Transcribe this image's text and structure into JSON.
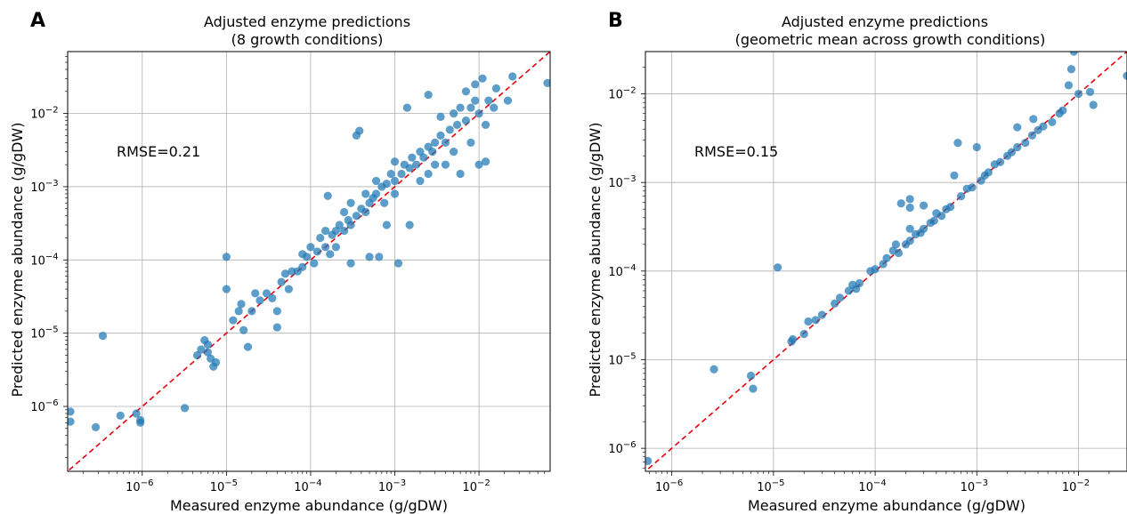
{
  "chart_data": [
    {
      "type": "scatter",
      "panel_letter": "A",
      "title_lines": [
        "Adjusted enzyme predictions",
        "(8 growth conditions)"
      ],
      "xlabel": "Measured enzyme abundance (g/gDW)",
      "ylabel": "Predicted enzyme abundance (g/gDW)",
      "scale": "log",
      "xlim": [
        1.3e-07,
        0.07
      ],
      "ylim": [
        1.3e-07,
        0.07
      ],
      "x_ticks": [
        {
          "value": 1e-06,
          "base": "10",
          "exp": "−6"
        },
        {
          "value": 1e-05,
          "base": "10",
          "exp": "−5"
        },
        {
          "value": 0.0001,
          "base": "10",
          "exp": "−4"
        },
        {
          "value": 0.001,
          "base": "10",
          "exp": "−3"
        },
        {
          "value": 0.01,
          "base": "10",
          "exp": "−2"
        }
      ],
      "y_ticks": [
        {
          "value": 1e-06,
          "base": "10",
          "exp": "−6"
        },
        {
          "value": 1e-05,
          "base": "10",
          "exp": "−5"
        },
        {
          "value": 0.0001,
          "base": "10",
          "exp": "−4"
        },
        {
          "value": 0.001,
          "base": "10",
          "exp": "−3"
        },
        {
          "value": 0.01,
          "base": "10",
          "exp": "−2"
        }
      ],
      "grid": true,
      "annotation": "RMSE=0.21",
      "reference_line": "y = x",
      "series": [
        {
          "points": [
            [
              1.4e-07,
              8.5e-07
            ],
            [
              1.4e-07,
              6.2e-07
            ],
            [
              2.8e-07,
              5.2e-07
            ],
            [
              3.4e-07,
              9.2e-06
            ],
            [
              5.5e-07,
              7.5e-07
            ],
            [
              8.5e-07,
              8e-07
            ],
            [
              9.5e-07,
              6.5e-07
            ],
            [
              9.5e-07,
              6e-07
            ],
            [
              3.2e-06,
              9.5e-07
            ],
            [
              4.5e-06,
              5e-06
            ],
            [
              5e-06,
              6e-06
            ],
            [
              5.5e-06,
              8e-06
            ],
            [
              6e-06,
              7e-06
            ],
            [
              6e-06,
              5.5e-06
            ],
            [
              6.5e-06,
              4.5e-06
            ],
            [
              7e-06,
              3.5e-06
            ],
            [
              7.5e-06,
              4e-06
            ],
            [
              1e-05,
              4e-05
            ],
            [
              1e-05,
              0.00011
            ],
            [
              1.2e-05,
              1.5e-05
            ],
            [
              1.4e-05,
              2e-05
            ],
            [
              1.5e-05,
              2.5e-05
            ],
            [
              1.6e-05,
              1.1e-05
            ],
            [
              1.8e-05,
              6.5e-06
            ],
            [
              2e-05,
              2e-05
            ],
            [
              2.2e-05,
              3.5e-05
            ],
            [
              2.5e-05,
              2.8e-05
            ],
            [
              3e-05,
              3.5e-05
            ],
            [
              3.5e-05,
              3e-05
            ],
            [
              4e-05,
              2e-05
            ],
            [
              4e-05,
              1.2e-05
            ],
            [
              4.5e-05,
              5e-05
            ],
            [
              5e-05,
              6.5e-05
            ],
            [
              5.5e-05,
              4e-05
            ],
            [
              6e-05,
              7e-05
            ],
            [
              7e-05,
              7e-05
            ],
            [
              8e-05,
              0.00012
            ],
            [
              8e-05,
              8e-05
            ],
            [
              9e-05,
              0.00011
            ],
            [
              0.0001,
              0.00015
            ],
            [
              0.00011,
              9e-05
            ],
            [
              0.00012,
              0.00013
            ],
            [
              0.00013,
              0.0002
            ],
            [
              0.00015,
              0.00015
            ],
            [
              0.00015,
              0.00025
            ],
            [
              0.00016,
              0.00075
            ],
            [
              0.00017,
              0.00012
            ],
            [
              0.00018,
              0.00022
            ],
            [
              0.0002,
              0.00025
            ],
            [
              0.0002,
              0.00015
            ],
            [
              0.00022,
              0.0003
            ],
            [
              0.00025,
              0.00025
            ],
            [
              0.00025,
              0.00045
            ],
            [
              0.00028,
              0.00035
            ],
            [
              0.0003,
              0.0003
            ],
            [
              0.0003,
              9e-05
            ],
            [
              0.0003,
              0.0006
            ],
            [
              0.00035,
              0.0004
            ],
            [
              0.00035,
              0.005
            ],
            [
              0.00038,
              0.0058
            ],
            [
              0.0004,
              0.0005
            ],
            [
              0.00045,
              0.00045
            ],
            [
              0.00045,
              0.0008
            ],
            [
              0.0005,
              0.0006
            ],
            [
              0.0005,
              0.00011
            ],
            [
              0.00055,
              0.0007
            ],
            [
              0.0006,
              0.0008
            ],
            [
              0.0006,
              0.0012
            ],
            [
              0.00065,
              0.00011
            ],
            [
              0.0007,
              0.001
            ],
            [
              0.00075,
              0.0006
            ],
            [
              0.0008,
              0.0011
            ],
            [
              0.0008,
              0.0003
            ],
            [
              0.0009,
              0.0015
            ],
            [
              0.001,
              0.0012
            ],
            [
              0.001,
              0.0008
            ],
            [
              0.001,
              0.0022
            ],
            [
              0.0011,
              9e-05
            ],
            [
              0.0012,
              0.0015
            ],
            [
              0.0013,
              0.002
            ],
            [
              0.0014,
              0.012
            ],
            [
              0.0015,
              0.0018
            ],
            [
              0.0015,
              0.0003
            ],
            [
              0.0016,
              0.0025
            ],
            [
              0.0018,
              0.002
            ],
            [
              0.002,
              0.003
            ],
            [
              0.002,
              0.0012
            ],
            [
              0.0022,
              0.0025
            ],
            [
              0.0025,
              0.0035
            ],
            [
              0.0025,
              0.0015
            ],
            [
              0.0025,
              0.018
            ],
            [
              0.0028,
              0.003
            ],
            [
              0.003,
              0.004
            ],
            [
              0.003,
              0.002
            ],
            [
              0.0035,
              0.005
            ],
            [
              0.0035,
              0.009
            ],
            [
              0.004,
              0.004
            ],
            [
              0.004,
              0.002
            ],
            [
              0.0045,
              0.006
            ],
            [
              0.005,
              0.01
            ],
            [
              0.005,
              0.003
            ],
            [
              0.0055,
              0.007
            ],
            [
              0.006,
              0.012
            ],
            [
              0.006,
              0.0015
            ],
            [
              0.007,
              0.008
            ],
            [
              0.007,
              0.02
            ],
            [
              0.008,
              0.012
            ],
            [
              0.008,
              0.004
            ],
            [
              0.009,
              0.025
            ],
            [
              0.009,
              0.015
            ],
            [
              0.01,
              0.01
            ],
            [
              0.01,
              0.002
            ],
            [
              0.011,
              0.03
            ],
            [
              0.012,
              0.007
            ],
            [
              0.012,
              0.0022
            ],
            [
              0.013,
              0.015
            ],
            [
              0.015,
              0.012
            ],
            [
              0.016,
              0.022
            ],
            [
              0.022,
              0.015
            ],
            [
              0.025,
              0.032
            ],
            [
              0.065,
              0.026
            ]
          ]
        }
      ]
    },
    {
      "type": "scatter",
      "panel_letter": "B",
      "title_lines": [
        "Adjusted enzyme predictions",
        "(geometric mean across growth conditions)"
      ],
      "xlabel": "Measured enzyme abundance (g/gDW)",
      "ylabel": "Predicted enzyme abundance (g/gDW)",
      "scale": "log",
      "xlim": [
        5.5e-07,
        0.03
      ],
      "ylim": [
        5.5e-07,
        0.03
      ],
      "x_ticks": [
        {
          "value": 1e-06,
          "base": "10",
          "exp": "−6"
        },
        {
          "value": 1e-05,
          "base": "10",
          "exp": "−5"
        },
        {
          "value": 0.0001,
          "base": "10",
          "exp": "−4"
        },
        {
          "value": 0.001,
          "base": "10",
          "exp": "−3"
        },
        {
          "value": 0.01,
          "base": "10",
          "exp": "−2"
        }
      ],
      "y_ticks": [
        {
          "value": 1e-06,
          "base": "10",
          "exp": "−6"
        },
        {
          "value": 1e-05,
          "base": "10",
          "exp": "−5"
        },
        {
          "value": 0.0001,
          "base": "10",
          "exp": "−4"
        },
        {
          "value": 0.001,
          "base": "10",
          "exp": "−3"
        },
        {
          "value": 0.01,
          "base": "10",
          "exp": "−2"
        }
      ],
      "grid": true,
      "annotation": "RMSE=0.15",
      "reference_line": "y = x",
      "series": [
        {
          "points": [
            [
              5.8e-07,
              7.2e-07
            ],
            [
              2.6e-06,
              7.8e-06
            ],
            [
              6e-06,
              6.6e-06
            ],
            [
              6.3e-06,
              4.7e-06
            ],
            [
              1.1e-05,
              0.00011
            ],
            [
              1.5e-05,
              1.6e-05
            ],
            [
              1.55e-05,
              1.7e-05
            ],
            [
              2e-05,
              1.95e-05
            ],
            [
              2.2e-05,
              2.7e-05
            ],
            [
              2.6e-05,
              2.8e-05
            ],
            [
              3e-05,
              3.2e-05
            ],
            [
              4e-05,
              4.3e-05
            ],
            [
              4.5e-05,
              5e-05
            ],
            [
              5.5e-05,
              6e-05
            ],
            [
              6e-05,
              7e-05
            ],
            [
              6.5e-05,
              6.3e-05
            ],
            [
              7e-05,
              7.3e-05
            ],
            [
              9e-05,
              0.0001
            ],
            [
              0.0001,
              0.000105
            ],
            [
              0.00012,
              0.00012
            ],
            [
              0.00013,
              0.00014
            ],
            [
              0.00015,
              0.00017
            ],
            [
              0.00016,
              0.0002
            ],
            [
              0.00017,
              0.00016
            ],
            [
              0.0002,
              0.0002
            ],
            [
              0.00022,
              0.00022
            ],
            [
              0.00022,
              0.0003
            ],
            [
              0.00022,
              0.00065
            ],
            [
              0.00022,
              0.00052
            ],
            [
              0.00018,
              0.00058
            ],
            [
              0.00025,
              0.00026
            ],
            [
              0.00028,
              0.00027
            ],
            [
              0.0003,
              0.0003
            ],
            [
              0.0003,
              0.00055
            ],
            [
              0.00035,
              0.00035
            ],
            [
              0.00038,
              0.00037
            ],
            [
              0.0004,
              0.00045
            ],
            [
              0.00045,
              0.00042
            ],
            [
              0.0005,
              0.0005
            ],
            [
              0.00055,
              0.00053
            ],
            [
              0.0006,
              0.0012
            ],
            [
              0.00065,
              0.0028
            ],
            [
              0.0007,
              0.0007
            ],
            [
              0.0008,
              0.00085
            ],
            [
              0.0009,
              0.00088
            ],
            [
              0.001,
              0.0025
            ],
            [
              0.0011,
              0.00105
            ],
            [
              0.0012,
              0.0012
            ],
            [
              0.0013,
              0.0013
            ],
            [
              0.0015,
              0.0016
            ],
            [
              0.0017,
              0.0017
            ],
            [
              0.002,
              0.002
            ],
            [
              0.0022,
              0.0022
            ],
            [
              0.0025,
              0.0025
            ],
            [
              0.0025,
              0.0042
            ],
            [
              0.003,
              0.0028
            ],
            [
              0.0035,
              0.0034
            ],
            [
              0.0036,
              0.0052
            ],
            [
              0.004,
              0.0039
            ],
            [
              0.0045,
              0.0043
            ],
            [
              0.0055,
              0.0048
            ],
            [
              0.0065,
              0.006
            ],
            [
              0.007,
              0.0065
            ],
            [
              0.008,
              0.0125
            ],
            [
              0.0085,
              0.019
            ],
            [
              0.009,
              0.03
            ],
            [
              0.01,
              0.01
            ],
            [
              0.013,
              0.0105
            ],
            [
              0.014,
              0.0075
            ],
            [
              0.03,
              0.016
            ]
          ]
        }
      ]
    }
  ]
}
